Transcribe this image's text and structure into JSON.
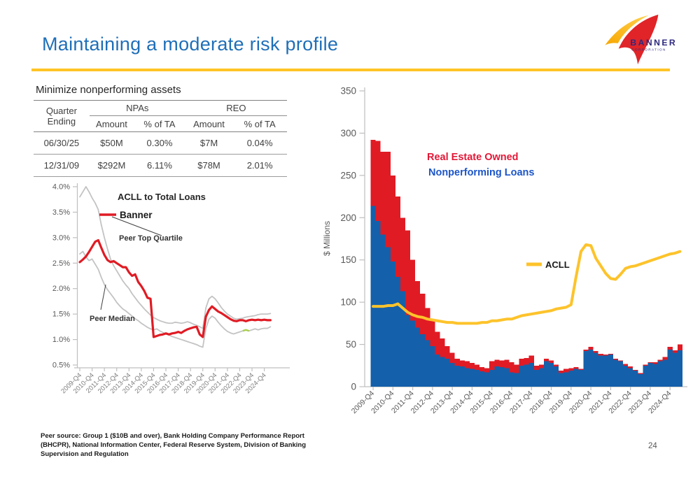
{
  "slide": {
    "title": "Maintaining a moderate risk profile",
    "page_number": "24",
    "accent_color": "#FFC425",
    "title_color": "#1F6FB8"
  },
  "logo": {
    "name": "BANNER",
    "subtext": "CORPORATION",
    "sail_color": "#E02428",
    "swoosh_colors": [
      "#F7A600",
      "#FFD24D"
    ],
    "text_color": "#2E2A80"
  },
  "table_section": {
    "heading": "Minimize nonperforming assets",
    "row_header": "Quarter Ending",
    "col_groups": [
      "NPAs",
      "REO"
    ],
    "sub_headers": [
      "Amount",
      "% of TA",
      "Amount",
      "% of TA"
    ],
    "rows": [
      {
        "quarter": "06/30/25",
        "npa_amount": "$50M",
        "npa_pct": "0.30%",
        "reo_amount": "$7M",
        "reo_pct": "0.04%"
      },
      {
        "quarter": "12/31/09",
        "npa_amount": "$292M",
        "npa_pct": "6.11%",
        "reo_amount": "$78M",
        "reo_pct": "2.01%"
      }
    ]
  },
  "footer": {
    "lines": [
      "Peer source: Group 1 ($10B and over), Bank Holding Company Performance Report",
      "(BHCPR), National Information Center, Federal Reserve System, Division of Banking",
      "Supervision and Regulation"
    ]
  },
  "chart_data": [
    {
      "type": "line",
      "title": "ACLL to Total Loans",
      "frequency": "quarterly, 2009-Q4 through 2025-Q2",
      "x_tick_labels": [
        "2009-Q4",
        "2010-Q4",
        "2011-Q4",
        "2012-Q4",
        "2013-Q4",
        "2014-Q4",
        "2015-Q4",
        "2016-Q4",
        "2017-Q4",
        "2018-Q4",
        "2019-Q4",
        "2020-Q4",
        "2021-Q4",
        "2022-Q4",
        "2023-Q4",
        "2024-Q4"
      ],
      "ylim": [
        0.5,
        4.0
      ],
      "y_tick_labels": [
        "0.5%",
        "1.0%",
        "1.5%",
        "2.0%",
        "2.5%",
        "3.0%",
        "3.5%",
        "4.0%"
      ],
      "grid": false,
      "legend_position": "top-inside",
      "annotations": [
        "Peer Top Quartile",
        "Peer Median"
      ],
      "series": [
        {
          "name": "Banner",
          "color": "#E01B24",
          "width": 3.2,
          "values": [
            2.52,
            2.57,
            2.63,
            2.72,
            2.82,
            2.92,
            2.95,
            2.8,
            2.66,
            2.56,
            2.52,
            2.54,
            2.5,
            2.46,
            2.42,
            2.42,
            2.32,
            2.25,
            2.28,
            2.13,
            2.05,
            1.95,
            1.82,
            1.8,
            1.05,
            1.07,
            1.09,
            1.1,
            1.12,
            1.1,
            1.12,
            1.13,
            1.15,
            1.13,
            1.17,
            1.2,
            1.22,
            1.24,
            1.25,
            1.1,
            1.05,
            1.45,
            1.58,
            1.65,
            1.6,
            1.55,
            1.52,
            1.48,
            1.44,
            1.4,
            1.37,
            1.36,
            1.38,
            1.38,
            1.36,
            1.38,
            1.39,
            1.38,
            1.39,
            1.38,
            1.39,
            1.38,
            1.38
          ]
        },
        {
          "name": "Peer Top Quartile",
          "color": "#C3C3C3",
          "width": 1.8,
          "values": [
            3.8,
            3.9,
            4.0,
            3.9,
            3.78,
            3.68,
            3.55,
            3.25,
            3.0,
            2.78,
            2.58,
            2.45,
            2.35,
            2.25,
            2.15,
            2.07,
            2.0,
            1.9,
            1.82,
            1.74,
            1.67,
            1.6,
            1.54,
            1.48,
            1.43,
            1.4,
            1.37,
            1.35,
            1.33,
            1.32,
            1.32,
            1.34,
            1.33,
            1.32,
            1.33,
            1.35,
            1.33,
            1.3,
            1.28,
            1.25,
            1.22,
            1.62,
            1.8,
            1.85,
            1.8,
            1.72,
            1.63,
            1.56,
            1.5,
            1.46,
            1.42,
            1.4,
            1.41,
            1.42,
            1.44,
            1.45,
            1.46,
            1.47,
            1.49,
            1.5,
            1.5,
            1.5,
            1.51
          ]
        },
        {
          "name": "Peer Median",
          "color": "#C3C3C3",
          "width": 1.8,
          "values": [
            2.68,
            2.73,
            2.62,
            2.55,
            2.58,
            2.48,
            2.38,
            2.22,
            2.08,
            1.98,
            1.9,
            1.82,
            1.73,
            1.66,
            1.6,
            1.56,
            1.51,
            1.46,
            1.41,
            1.37,
            1.32,
            1.28,
            1.24,
            1.21,
            1.19,
            1.21,
            1.17,
            1.14,
            1.11,
            1.09,
            1.06,
            1.04,
            1.02,
            1.0,
            0.98,
            0.96,
            0.94,
            0.92,
            0.9,
            0.87,
            0.85,
            1.22,
            1.4,
            1.46,
            1.42,
            1.34,
            1.27,
            1.21,
            1.16,
            1.13,
            1.11,
            1.13,
            1.15,
            1.17,
            1.19,
            1.17,
            1.19,
            1.21,
            1.19,
            1.21,
            1.22,
            1.22,
            1.25
          ]
        }
      ],
      "median_highlight": {
        "color": "#A9CE4B",
        "start_index": 53,
        "end_index": 55
      }
    },
    {
      "type": "bar",
      "subtype": "stacked-bars-with-line-overlay",
      "ylabel": "$ Millions",
      "ylim": [
        0,
        350
      ],
      "y_ticks": [
        0,
        50,
        100,
        150,
        200,
        250,
        300,
        350
      ],
      "frequency": "quarterly, 2009-Q4 through 2025-Q2",
      "x_tick_labels": [
        "2009-Q4",
        "2010-Q4",
        "2011-Q4",
        "2012-Q4",
        "2013-Q4",
        "2014-Q4",
        "2015-Q4",
        "2016-Q4",
        "2017-Q4",
        "2018-Q4",
        "2019-Q4",
        "2020-Q4",
        "2021-Q4",
        "2022-Q4",
        "2023-Q4",
        "2024-Q4"
      ],
      "labels": {
        "reo": "Real Estate Owned",
        "npl": "Nonperforming Loans",
        "reo_color": "#E31837",
        "npl_color": "#1C55C8"
      },
      "bar_series": [
        {
          "name": "Nonperforming Loans",
          "color": "#1560AA",
          "values": [
            214,
            196,
            180,
            165,
            148,
            130,
            113,
            85,
            78,
            70,
            62,
            55,
            48,
            38,
            35,
            33,
            28,
            25,
            24,
            22,
            21,
            20,
            18,
            17,
            20,
            24,
            23,
            22,
            17,
            16,
            25,
            26,
            28,
            20,
            22,
            30,
            28,
            24,
            16,
            17,
            19,
            21,
            20,
            42,
            44,
            40,
            37,
            37,
            38,
            32,
            30,
            25,
            22,
            19,
            15,
            25,
            28,
            27,
            30,
            32,
            44,
            40,
            43
          ]
        },
        {
          "name": "Real Estate Owned",
          "color": "#E01B24",
          "values": [
            78,
            95,
            98,
            113,
            102,
            95,
            87,
            100,
            72,
            55,
            48,
            38,
            32,
            27,
            22,
            15,
            12,
            8,
            7,
            8,
            7,
            6,
            5,
            5,
            10,
            8,
            8,
            10,
            12,
            10,
            8,
            8,
            9,
            5,
            4,
            3,
            3,
            2,
            3,
            4,
            3,
            2,
            1,
            2,
            3,
            2,
            2,
            1,
            1,
            1,
            1,
            2,
            2,
            1,
            1,
            1,
            1,
            2,
            2,
            3,
            3,
            3,
            7
          ]
        }
      ],
      "line_series": {
        "name": "ACLL",
        "color": "#FDC32B",
        "values": [
          95,
          95,
          95,
          96,
          96,
          98,
          93,
          88,
          85,
          83,
          82,
          80,
          79,
          78,
          77,
          76,
          76,
          75,
          75,
          75,
          75,
          75,
          76,
          76,
          78,
          78,
          79,
          80,
          80,
          82,
          84,
          85,
          86,
          87,
          88,
          89,
          90,
          92,
          93,
          94,
          97,
          130,
          160,
          168,
          167,
          152,
          143,
          134,
          128,
          127,
          133,
          140,
          142,
          143,
          145,
          147,
          149,
          151,
          153,
          155,
          157,
          158,
          160
        ]
      }
    }
  ]
}
